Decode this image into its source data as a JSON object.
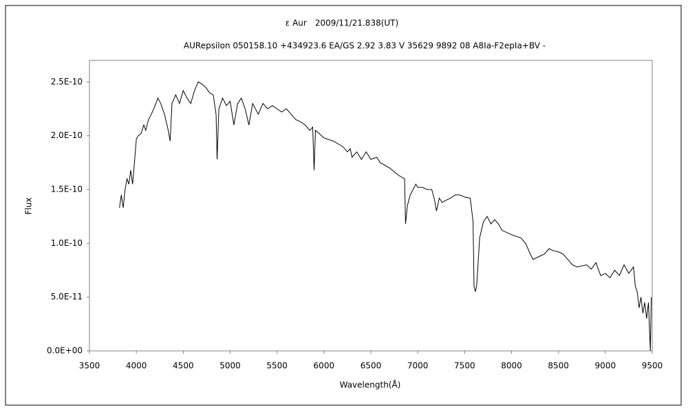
{
  "chart_data": {
    "type": "line",
    "title": "ε Aur　2009/11/21.838(UT)",
    "subtitle": "AURepsilon 050158.10 +434923.6 EA/GS 2.92 3.83 V 35629 9892 08 A8Ia-F2epIa+BV -",
    "x_label": "Wavelength(Å)",
    "y_label": "Flux",
    "color": "#000000",
    "grid": false,
    "xlim": [
      3500,
      9500
    ],
    "xticks": [
      3500,
      4000,
      4500,
      5000,
      5500,
      6000,
      6500,
      7000,
      7500,
      8000,
      8500,
      9000,
      9500
    ],
    "ylim": [
      0,
      2.7e-10
    ],
    "yticks": [
      {
        "value": 0,
        "label": "0.0E+00"
      },
      {
        "value": 5e-11,
        "label": "5.0E-11"
      },
      {
        "value": 1e-10,
        "label": "1.0E-10"
      },
      {
        "value": 1.5e-10,
        "label": "1.5E-10"
      },
      {
        "value": 2e-10,
        "label": "2.0E-10"
      },
      {
        "value": 2.5e-10,
        "label": "2.5E-10"
      }
    ],
    "x": [
      3820,
      3840,
      3860,
      3880,
      3900,
      3920,
      3940,
      3960,
      3980,
      4000,
      4020,
      4050,
      4080,
      4100,
      4130,
      4160,
      4200,
      4230,
      4260,
      4300,
      4340,
      4360,
      4380,
      4420,
      4460,
      4500,
      4540,
      4580,
      4620,
      4660,
      4700,
      4740,
      4780,
      4820,
      4850,
      4861,
      4880,
      4920,
      4960,
      5000,
      5040,
      5080,
      5120,
      5160,
      5200,
      5240,
      5300,
      5350,
      5400,
      5450,
      5500,
      5550,
      5600,
      5650,
      5700,
      5750,
      5800,
      5850,
      5880,
      5895,
      5910,
      5950,
      6000,
      6100,
      6200,
      6250,
      6280,
      6300,
      6350,
      6400,
      6450,
      6500,
      6563,
      6600,
      6700,
      6800,
      6860,
      6870,
      6890,
      6920,
      6950,
      6980,
      7000,
      7050,
      7100,
      7150,
      7180,
      7200,
      7230,
      7260,
      7300,
      7350,
      7400,
      7450,
      7500,
      7560,
      7590,
      7600,
      7615,
      7630,
      7660,
      7700,
      7740,
      7780,
      7820,
      7860,
      7900,
      8000,
      8100,
      8150,
      8200,
      8230,
      8300,
      8350,
      8400,
      8450,
      8500,
      8550,
      8600,
      8650,
      8700,
      8800,
      8850,
      8900,
      8950,
      9000,
      9050,
      9100,
      9150,
      9200,
      9250,
      9300,
      9320,
      9340,
      9360,
      9380,
      9400,
      9420,
      9440,
      9460,
      9480,
      9490
    ],
    "values": [
      1.33e-10,
      1.45e-10,
      1.33e-10,
      1.5e-10,
      1.6e-10,
      1.55e-10,
      1.68e-10,
      1.55e-10,
      1.75e-10,
      1.97e-10,
      2e-10,
      2.02e-10,
      2.1e-10,
      2.05e-10,
      2.15e-10,
      2.2e-10,
      2.28e-10,
      2.35e-10,
      2.3e-10,
      2.2e-10,
      2.05e-10,
      1.95e-10,
      2.3e-10,
      2.38e-10,
      2.3e-10,
      2.42e-10,
      2.35e-10,
      2.3e-10,
      2.42e-10,
      2.5e-10,
      2.48e-10,
      2.45e-10,
      2.4e-10,
      2.38e-10,
      2.2e-10,
      1.78e-10,
      2.25e-10,
      2.35e-10,
      2.28e-10,
      2.32e-10,
      2.1e-10,
      2.3e-10,
      2.35e-10,
      2.25e-10,
      2.1e-10,
      2.3e-10,
      2.2e-10,
      2.3e-10,
      2.25e-10,
      2.28e-10,
      2.25e-10,
      2.22e-10,
      2.25e-10,
      2.2e-10,
      2.15e-10,
      2.13e-10,
      2.1e-10,
      2.05e-10,
      2.08e-10,
      1.68e-10,
      2.05e-10,
      2.02e-10,
      1.98e-10,
      1.95e-10,
      1.9e-10,
      1.85e-10,
      1.88e-10,
      1.8e-10,
      1.85e-10,
      1.78e-10,
      1.85e-10,
      1.78e-10,
      1.8e-10,
      1.75e-10,
      1.7e-10,
      1.63e-10,
      1.6e-10,
      1.18e-10,
      1.35e-10,
      1.45e-10,
      1.5e-10,
      1.55e-10,
      1.52e-10,
      1.52e-10,
      1.5e-10,
      1.5e-10,
      1.4e-10,
      1.3e-10,
      1.42e-10,
      1.38e-10,
      1.4e-10,
      1.42e-10,
      1.45e-10,
      1.45e-10,
      1.43e-10,
      1.42e-10,
      1.2e-10,
      6e-11,
      5.5e-11,
      6.2e-11,
      1.05e-10,
      1.2e-10,
      1.25e-10,
      1.18e-10,
      1.22e-10,
      1.18e-10,
      1.12e-10,
      1.08e-10,
      1.05e-10,
      1e-10,
      9e-11,
      8.5e-11,
      8.8e-11,
      9e-11,
      9.5e-11,
      9.3e-11,
      9.2e-11,
      9e-11,
      8.5e-11,
      8e-11,
      7.8e-11,
      8e-11,
      7.6e-11,
      8.2e-11,
      7e-11,
      7.2e-11,
      6.8e-11,
      7.5e-11,
      7e-11,
      8e-11,
      7.2e-11,
      7.8e-11,
      6e-11,
      5.5e-11,
      4e-11,
      5e-11,
      3.5e-11,
      4.5e-11,
      3e-11,
      4.5e-11,
      0,
      5e-11
    ]
  }
}
